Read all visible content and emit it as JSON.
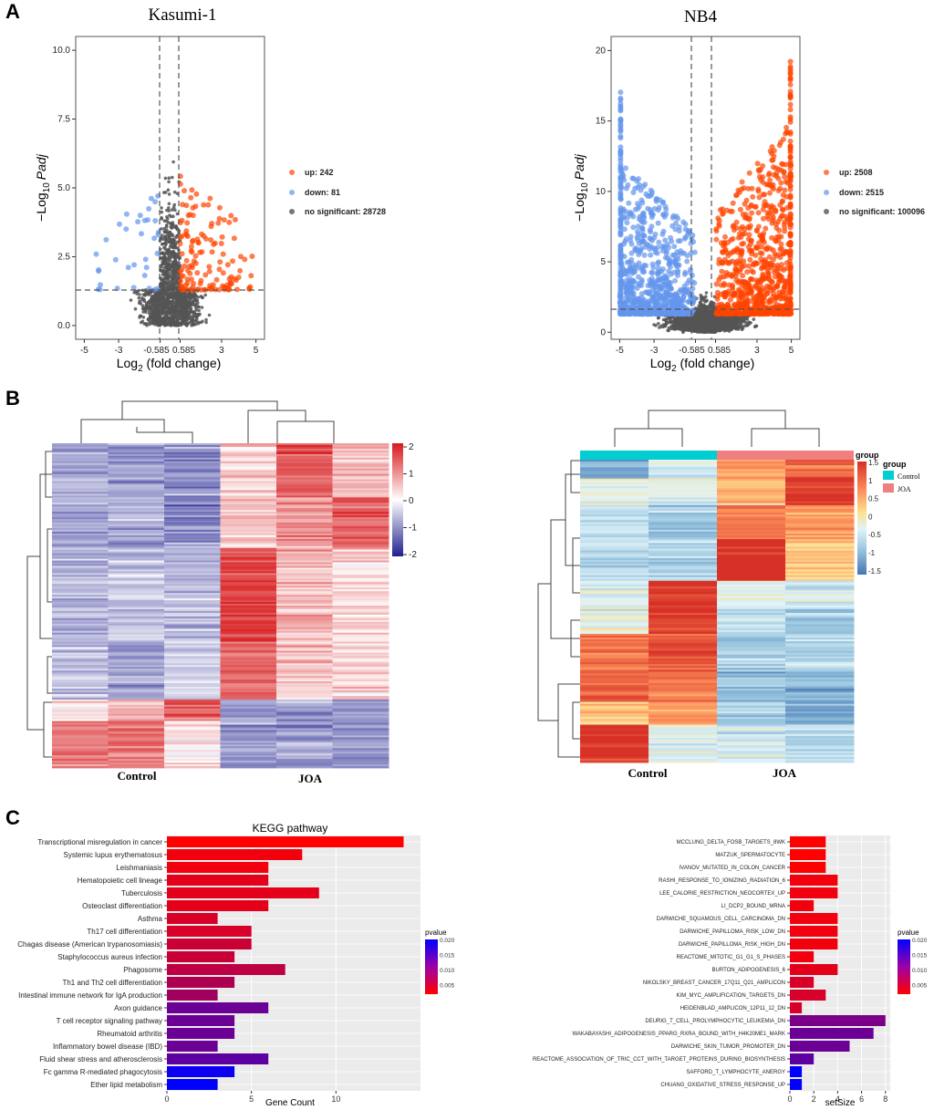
{
  "panels": {
    "a_label": "A",
    "b_label": "B",
    "c_label": "C"
  },
  "volcano": [
    {
      "title": "Kasumi-1",
      "xlabel_main": "Log",
      "xlabel_sub": "2",
      "xlabel_tail": " (fold change)",
      "ylabel_pre": "−Log",
      "ylabel_sub": "10",
      "ylabel_ital": "Padj",
      "x_ticks": [
        "-5",
        "-3",
        "-0.585",
        "0.585",
        "3",
        "5"
      ],
      "y_ticks": [
        "0.0",
        "2.5",
        "5.0",
        "7.5",
        "10.0"
      ],
      "legend": [
        "up: 242",
        "down: 81",
        "no significant: 28728"
      ]
    },
    {
      "title": "NB4",
      "xlabel_main": "Log",
      "xlabel_sub": "2",
      "xlabel_tail": " (fold change)",
      "ylabel_pre": "−Log",
      "ylabel_sub": "10",
      "ylabel_ital": "Padj",
      "x_ticks": [
        "-5",
        "-3",
        "-0.585",
        "0.585",
        "3",
        "5"
      ],
      "y_ticks": [
        "0",
        "5",
        "10",
        "15",
        "20"
      ],
      "legend": [
        "up: 2508",
        "down: 2515",
        "no significant: 100096"
      ]
    }
  ],
  "heatmaps": [
    {
      "groups": [
        "Control",
        "JOA"
      ],
      "scale_ticks": [
        "2",
        "1",
        "0",
        "-1",
        "-2"
      ]
    },
    {
      "groups": [
        "Control",
        "JOA"
      ],
      "scale_ticks": [
        "1.5",
        "1",
        "0.5",
        "0",
        "-0.5",
        "-1",
        "-1.5"
      ],
      "annotation_label": "group",
      "legend_title": "group",
      "legend_items": [
        "Control",
        "JOA"
      ]
    }
  ],
  "chart_data": [
    {
      "type": "scatter",
      "title": "Kasumi-1",
      "xlim": [
        -5.5,
        5.5
      ],
      "ylim": [
        -0.5,
        10.5
      ],
      "thresholds": {
        "x": [
          -0.585,
          0.585
        ],
        "y": 1.3
      },
      "series": [
        {
          "name": "up",
          "count": 242,
          "color": "#ff4500"
        },
        {
          "name": "down",
          "count": 81,
          "color": "#6495ed"
        },
        {
          "name": "no significant",
          "count": 28728,
          "color": "#555555"
        }
      ]
    },
    {
      "type": "scatter",
      "title": "NB4",
      "xlim": [
        -5.5,
        5.5
      ],
      "ylim": [
        -0.5,
        21
      ],
      "thresholds": {
        "x": [
          -0.585,
          0.585
        ],
        "y": 1.3
      },
      "series": [
        {
          "name": "up",
          "count": 2508,
          "color": "#ff4500"
        },
        {
          "name": "down",
          "count": 2515,
          "color": "#6495ed"
        },
        {
          "name": "no significant",
          "count": 100096,
          "color": "#555555"
        }
      ]
    },
    {
      "type": "heatmap",
      "columns": 6,
      "groups": [
        "Control",
        "JOA"
      ],
      "range": [
        -2,
        2
      ]
    },
    {
      "type": "heatmap",
      "columns": 4,
      "groups": [
        "Control",
        "JOA"
      ],
      "range": [
        -1.5,
        1.5
      ]
    },
    {
      "type": "bar",
      "title": "KEGG pathway",
      "xlabel": "Gene Count",
      "legend_title": "pvalue",
      "legend_ticks": [
        "0.020",
        "0.015",
        "0.010",
        "0.005"
      ],
      "x_ticks": [
        0,
        5,
        10
      ],
      "xlim": [
        0,
        15
      ],
      "categories": [
        "Transcriptional misregulation in cancer",
        "Systemic lupus erythematosus",
        "Leishmaniasis",
        "Hematopoietic cell lineage",
        "Tuberculosis",
        "Osteoclast differentiation",
        "Asthma",
        "Th17 cell differentiation",
        "Chagas disease (American trypanosomiasis)",
        "Staphylococcus aureus infection",
        "Phagosome",
        "Th1 and Th2 cell differentiation",
        "Intestinal immune network for IgA production",
        "Axon guidance",
        "T cell receptor signaling pathway",
        "Rheumatoid arthritis",
        "Inflammatory bowel disease (IBD)",
        "Fluid shear stress and atherosclerosis",
        "Fc gamma R-mediated phagocytosis",
        "Ether lipid metabolism"
      ],
      "values": [
        14,
        8,
        6,
        6,
        9,
        6,
        3,
        5,
        5,
        4,
        7,
        4,
        3,
        6,
        4,
        4,
        3,
        6,
        4,
        3
      ],
      "pvalues": [
        0.001,
        0.002,
        0.002,
        0.003,
        0.003,
        0.003,
        0.004,
        0.004,
        0.005,
        0.005,
        0.006,
        0.007,
        0.008,
        0.012,
        0.012,
        0.012,
        0.012,
        0.013,
        0.019,
        0.02
      ]
    },
    {
      "type": "bar",
      "title": "",
      "xlabel": "setSize",
      "legend_title": "pvalue",
      "legend_ticks": [
        "0.020",
        "0.015",
        "0.010",
        "0.005"
      ],
      "x_ticks": [
        0,
        2,
        4,
        6,
        8
      ],
      "xlim": [
        0,
        8.4
      ],
      "categories": [
        "MCCLUNG_DELTA_FOSB_TARGETS_8WK",
        "MATZUK_SPERMATOCYTE",
        "IVANOV_MUTATED_IN_COLON_CANCER",
        "RASHI_RESPONSE_TO_IONIZING_RADIATION_6",
        "LEE_CALORIE_RESTRICTION_NEOCORTEX_UP",
        "LI_DCP2_BOUND_MRNA",
        "DARWICHE_SQUAMOUS_CELL_CARCINOMA_DN",
        "DARWICHE_PAPILLOMA_RISK_LOW_DN",
        "DARWICHE_PAPILLOMA_RISK_HIGH_DN",
        "REACTOME_MITOTIC_G1_G1_S_PHASES",
        "BURTON_ADIPOGENESIS_6",
        "NIKOLSKY_BREAST_CANCER_17Q11_Q21_AMPLICON",
        "KIM_MYC_AMPLIFICATION_TARGETS_DN",
        "HEIDENBLAD_AMPLICON_12P11_12_DN",
        "DEURIG_T_CELL_PROLYMPHOCYTIC_LEUKEMIA_DN",
        "WAKABAYASHI_ADIPOGENESIS_PPARG_RXRA_BOUND_WITH_H4K20ME1_MARK",
        "DARWICHE_SKIN_TUMOR_PROMOTER_DN",
        "REACTOME_ASSOCIATION_OF_TRIC_CCT_WITH_TARGET_PROTEINS_DURING_BIOSYNTHESIS",
        "SAFFORD_T_LYMPHOCYTE_ANERGY",
        "CHUANG_OXIDATIVE_STRESS_RESPONSE_UP"
      ],
      "values": [
        3,
        3,
        3,
        4,
        4,
        2,
        4,
        4,
        4,
        2,
        4,
        2,
        3,
        1,
        8,
        7,
        5,
        2,
        1,
        1
      ],
      "pvalues": [
        0.001,
        0.001,
        0.001,
        0.002,
        0.002,
        0.002,
        0.002,
        0.002,
        0.002,
        0.002,
        0.003,
        0.004,
        0.004,
        0.004,
        0.011,
        0.012,
        0.012,
        0.013,
        0.02,
        0.021
      ]
    }
  ],
  "colors": {
    "up": "#ff4500",
    "down": "#6495ed",
    "ns": "#555555",
    "panel_bg": "#ebebeb",
    "grid": "#ffffff",
    "bar_low_p": "#ff0000",
    "bar_high_p": "#0000ff",
    "hm1_high": "#d7191c",
    "hm1_low": "#1f1f8f",
    "hm2_high": "#d73027",
    "hm2_low": "#4575b4",
    "group_control": "#00ced1",
    "group_joa": "#f08080"
  }
}
